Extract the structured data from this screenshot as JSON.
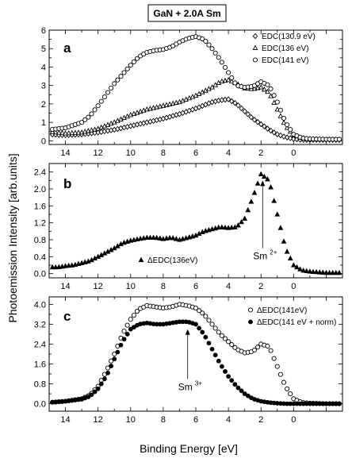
{
  "figure": {
    "title": "GaN + 2.0A Sm",
    "xlabel": "Binding Energy [eV]",
    "ylabel": "Photoemission Intensity [arb.units]"
  },
  "chart_data": [
    {
      "type": "scatter",
      "panel": "a",
      "xlim": [
        15,
        -3
      ],
      "x_reversed": true,
      "ylim": [
        -0.2,
        6
      ],
      "xticks": [
        "14",
        "12",
        "10",
        "8",
        "6",
        "4",
        "2",
        "0"
      ],
      "xtick_values": [
        14,
        12,
        10,
        8,
        6,
        4,
        2,
        0
      ],
      "yticks": [
        "0",
        "1",
        "2",
        "3",
        "4",
        "5",
        "6"
      ],
      "ytick_values": [
        0,
        1,
        2,
        3,
        4,
        5,
        6
      ],
      "legend_position": "top-right",
      "series": [
        {
          "name": "EDC(130.9 eV)",
          "marker": "diamond",
          "x": [
            15,
            14,
            13,
            12,
            11,
            10,
            9,
            8,
            7,
            6,
            5,
            4.5,
            4,
            3.5,
            3,
            2.5,
            2,
            1.5,
            1,
            0.5,
            0,
            -0.5,
            -1,
            -2,
            -3
          ],
          "y": [
            0.35,
            0.3,
            0.35,
            0.45,
            0.6,
            0.8,
            1.0,
            1.2,
            1.45,
            1.75,
            2.1,
            2.2,
            2.25,
            2.0,
            1.6,
            1.2,
            0.9,
            0.6,
            0.35,
            0.2,
            0.1,
            0.05,
            0.05,
            0.05,
            0.05
          ]
        },
        {
          "name": "EDC(136 eV)",
          "marker": "triangle",
          "x": [
            15,
            14,
            13,
            12,
            11,
            10,
            9,
            8,
            7,
            6,
            5,
            4.5,
            4,
            3.5,
            3,
            2.5,
            2,
            1.5,
            1,
            0.5,
            0,
            -0.5,
            -1,
            -2,
            -3
          ],
          "y": [
            0.5,
            0.4,
            0.45,
            0.65,
            1.0,
            1.4,
            1.7,
            1.9,
            2.1,
            2.45,
            2.9,
            3.2,
            3.3,
            3.1,
            2.85,
            2.8,
            2.9,
            2.6,
            1.7,
            0.8,
            0.3,
            0.15,
            0.1,
            0.08,
            0.08
          ]
        },
        {
          "name": "EDC(141 eV)",
          "marker": "circle",
          "x": [
            15,
            14,
            13,
            12.5,
            12,
            11.5,
            11,
            10.5,
            10,
            9.5,
            9,
            8.5,
            8,
            7.5,
            7,
            6.5,
            6,
            5.5,
            5,
            4.5,
            4,
            3.5,
            3,
            2.5,
            2,
            1.5,
            1,
            0.5,
            0,
            -0.5,
            -1,
            -2,
            -3
          ],
          "y": [
            0.6,
            0.7,
            1.0,
            1.35,
            1.9,
            2.5,
            3.1,
            3.6,
            4.1,
            4.55,
            4.8,
            4.9,
            4.95,
            5.1,
            5.35,
            5.55,
            5.65,
            5.5,
            5.0,
            4.4,
            3.7,
            3.0,
            2.9,
            2.95,
            3.2,
            3.0,
            2.1,
            1.0,
            0.35,
            0.15,
            0.1,
            0.08,
            0.08
          ]
        }
      ]
    },
    {
      "type": "scatter",
      "panel": "b",
      "xlim": [
        15,
        -3
      ],
      "x_reversed": true,
      "ylim": [
        -0.1,
        2.6
      ],
      "xticks": [
        "14",
        "12",
        "10",
        "8",
        "6",
        "4",
        "2",
        "0"
      ],
      "xtick_values": [
        14,
        12,
        10,
        8,
        6,
        4,
        2,
        0
      ],
      "yticks": [
        "0.0",
        "0.4",
        "0.8",
        "1.2",
        "1.6",
        "2.0",
        "2.4"
      ],
      "ytick_values": [
        0.0,
        0.4,
        0.8,
        1.2,
        1.6,
        2.0,
        2.4
      ],
      "legend_position": "bottom-left",
      "annotations": [
        {
          "label": "Sm",
          "superscript": "2+",
          "x": 1.9,
          "y_from": 0.6,
          "y_to": 2.2
        }
      ],
      "series": [
        {
          "name": "ΔEDC(136eV)",
          "marker": "triangle-filled",
          "x": [
            15,
            14.5,
            14,
            13.5,
            13,
            12.5,
            12,
            11.5,
            11,
            10.5,
            10,
            9.5,
            9,
            8.5,
            8,
            7.5,
            7,
            6.5,
            6,
            5.5,
            5,
            4.5,
            4,
            3.5,
            3,
            2.5,
            2,
            1.5,
            1,
            0.5,
            0,
            -0.5,
            -1,
            -2,
            -3
          ],
          "y": [
            0.15,
            0.15,
            0.18,
            0.2,
            0.25,
            0.3,
            0.4,
            0.5,
            0.6,
            0.72,
            0.78,
            0.82,
            0.85,
            0.85,
            0.82,
            0.85,
            0.8,
            0.85,
            0.9,
            1.0,
            1.05,
            1.1,
            1.08,
            1.1,
            1.3,
            1.8,
            2.35,
            2.2,
            1.4,
            0.6,
            0.2,
            0.08,
            0.05,
            0.02,
            0.02
          ]
        }
      ]
    },
    {
      "type": "scatter",
      "panel": "c",
      "xlim": [
        15,
        -3
      ],
      "x_reversed": true,
      "ylim": [
        -0.3,
        4.3
      ],
      "xticks": [
        "14",
        "12",
        "10",
        "8",
        "6",
        "4",
        "2",
        "0"
      ],
      "xtick_values": [
        14,
        12,
        10,
        8,
        6,
        4,
        2,
        0
      ],
      "yticks": [
        "0.0",
        "0.8",
        "1.6",
        "2.4",
        "3.2",
        "4.0"
      ],
      "ytick_values": [
        0.0,
        0.8,
        1.6,
        2.4,
        3.2,
        4.0
      ],
      "legend_position": "top-right",
      "annotations": [
        {
          "label": "Sm",
          "superscript": "3+",
          "x": 6.5,
          "y_from": 1.0,
          "y_to": 3.0
        }
      ],
      "series": [
        {
          "name": "ΔEDC(141eV)",
          "marker": "circle",
          "x": [
            15,
            14,
            13,
            12.5,
            12,
            11.5,
            11,
            10.5,
            10,
            9.5,
            9,
            8.5,
            8,
            7.5,
            7,
            6.5,
            6,
            5.5,
            5,
            4.5,
            4,
            3.5,
            3,
            2.5,
            2,
            1.5,
            1,
            0.5,
            0,
            -0.5,
            -1,
            -2,
            -3
          ],
          "y": [
            0.05,
            0.1,
            0.2,
            0.35,
            0.7,
            1.3,
            2.0,
            2.8,
            3.4,
            3.8,
            3.95,
            3.9,
            3.85,
            3.9,
            4.0,
            3.95,
            3.85,
            3.6,
            3.2,
            2.8,
            2.5,
            2.2,
            2.05,
            2.1,
            2.4,
            2.3,
            1.5,
            0.7,
            0.2,
            0.05,
            0.02,
            0.0,
            0.0
          ]
        },
        {
          "name": "ΔEDC(141 eV + norm)",
          "marker": "circle-filled",
          "x": [
            15,
            14,
            13,
            12.5,
            12,
            11.5,
            11,
            10.5,
            10,
            9.5,
            9,
            8.5,
            8,
            7.5,
            7,
            6.5,
            6,
            5.5,
            5,
            4.5,
            4,
            3.5,
            3,
            2.5,
            2,
            1.5,
            1,
            0.5,
            0,
            -0.5,
            -1,
            -2,
            -3
          ],
          "y": [
            0.05,
            0.1,
            0.18,
            0.3,
            0.6,
            1.1,
            1.8,
            2.5,
            3.0,
            3.2,
            3.25,
            3.2,
            3.2,
            3.25,
            3.3,
            3.3,
            3.2,
            2.8,
            2.2,
            1.6,
            1.1,
            0.7,
            0.4,
            0.2,
            0.1,
            0.05,
            0.02,
            0.0,
            0.0,
            0.0,
            0.0,
            0.0,
            0.0
          ]
        }
      ]
    }
  ]
}
